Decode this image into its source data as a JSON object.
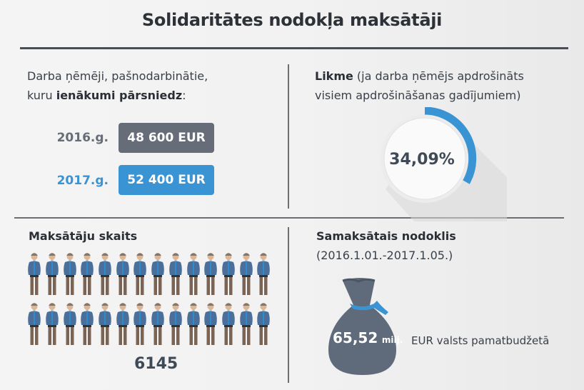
{
  "header": {
    "title": "Solidaritātes nodokļa maksātāji"
  },
  "threshold": {
    "lead_line1": "Darba ņēmēji, pašnodarbinātie,",
    "lead_line2_prefix": "kuru ",
    "lead_line2_bold": "ienākumi pārsniedz",
    "lead_line2_suffix": ":",
    "rows": [
      {
        "year": "2016.g.",
        "amount": "48 600 EUR",
        "color": "#666d78",
        "year_color": "#666d78"
      },
      {
        "year": "2017.g.",
        "amount": "52 400 EUR",
        "color": "#3a94d4",
        "year_color": "#3a94d4"
      }
    ]
  },
  "rate": {
    "title_bold": "Likme",
    "title_rest": " (ja darba ņēmējs apdrošināts",
    "title_line2": "visiem apdrošināšanas gadījumiem)",
    "value": "34,09%",
    "percent": 34.09,
    "arc_color": "#3a94d4"
  },
  "payers": {
    "title": "Maksātāju skaits",
    "count": "6145",
    "rows": 2,
    "per_row": 14,
    "icon": "person-icon"
  },
  "paid_tax": {
    "title": "Samaksātais nodoklis",
    "period": "(2016.1.01.-2017.1.05.)",
    "amount": "65,52",
    "unit": "milj.",
    "caption": "EUR valsts pamatbudžetā",
    "bag_color": "#5f6b7a",
    "ribbon_color": "#3a94d4"
  }
}
